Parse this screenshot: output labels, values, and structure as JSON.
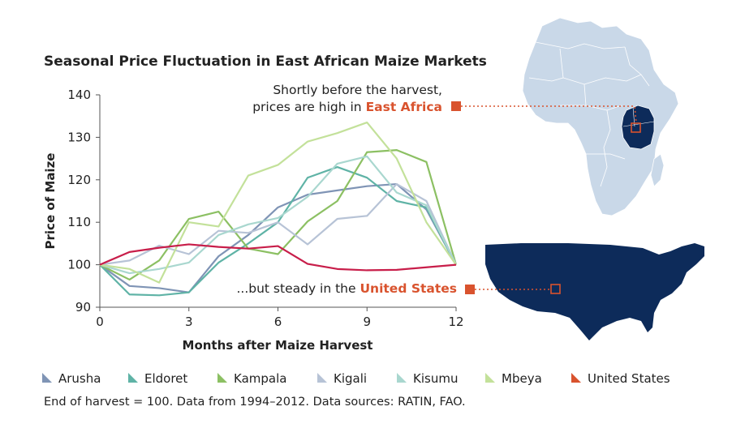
{
  "colors": {
    "accent": "#d9532e",
    "africa_fill": "#c9d8e8",
    "east_africa_fill": "#0d2b5a",
    "us_fill": "#0d2b5a"
  },
  "annotations": {
    "east_line1": "Shortly before the harvest,",
    "east_line2_prefix": "prices are high in ",
    "east_line2_highlight": "East Africa",
    "us_prefix": "...but steady in the ",
    "us_highlight": "United States"
  },
  "footnote": "End of harvest = 100. Data from 1994–2012. Data sources: RATIN, FAO.",
  "chart_data": {
    "type": "line",
    "title": "Seasonal Price Fluctuation in East African Maize Markets",
    "xlabel": "Months after Maize Harvest",
    "ylabel": "Price of Maize",
    "xlim": [
      0,
      12
    ],
    "ylim": [
      90,
      140
    ],
    "xticks": [
      0,
      3,
      6,
      9,
      12
    ],
    "yticks": [
      90,
      100,
      110,
      120,
      130,
      140
    ],
    "grid": false,
    "legend": "bottom",
    "x": [
      0,
      1,
      2,
      3,
      4,
      5,
      6,
      7,
      8,
      9,
      10,
      11,
      12
    ],
    "series": [
      {
        "name": "Arusha",
        "color": "#7f94b5",
        "values": [
          100,
          95,
          94.5,
          93.5,
          102,
          107,
          113.5,
          116.5,
          117.5,
          118.5,
          119,
          113,
          100
        ]
      },
      {
        "name": "Eldoret",
        "color": "#5fb3a6",
        "values": [
          100,
          93,
          92.8,
          93.5,
          100.5,
          105,
          110,
          120.5,
          123,
          120.5,
          115,
          113.5,
          100
        ]
      },
      {
        "name": "Kampala",
        "color": "#8cc063",
        "values": [
          100,
          96.5,
          101,
          110.8,
          112.5,
          103.8,
          102.5,
          110.2,
          115,
          126.5,
          127,
          124.2,
          100
        ]
      },
      {
        "name": "Kigali",
        "color": "#b7c3d6",
        "values": [
          100,
          101,
          104.5,
          102.5,
          108,
          107.5,
          110,
          104.8,
          110.8,
          111.5,
          119,
          115,
          100
        ]
      },
      {
        "name": "Kisumu",
        "color": "#a9d7cf",
        "values": [
          100,
          98,
          99,
          100.5,
          107,
          109.5,
          111,
          116,
          123.8,
          125.5,
          117,
          114,
          100
        ]
      },
      {
        "name": "Mbeya",
        "color": "#c3e19a",
        "values": [
          100,
          99,
          95.8,
          110,
          109,
          121,
          123.5,
          129,
          131,
          133.5,
          125,
          110,
          100
        ]
      },
      {
        "name": "United States",
        "color": "#c81e4a",
        "values": [
          100,
          103,
          104,
          104.8,
          104.2,
          103.8,
          104.4,
          100.2,
          99,
          98.7,
          98.8,
          99.4,
          100
        ]
      }
    ]
  }
}
